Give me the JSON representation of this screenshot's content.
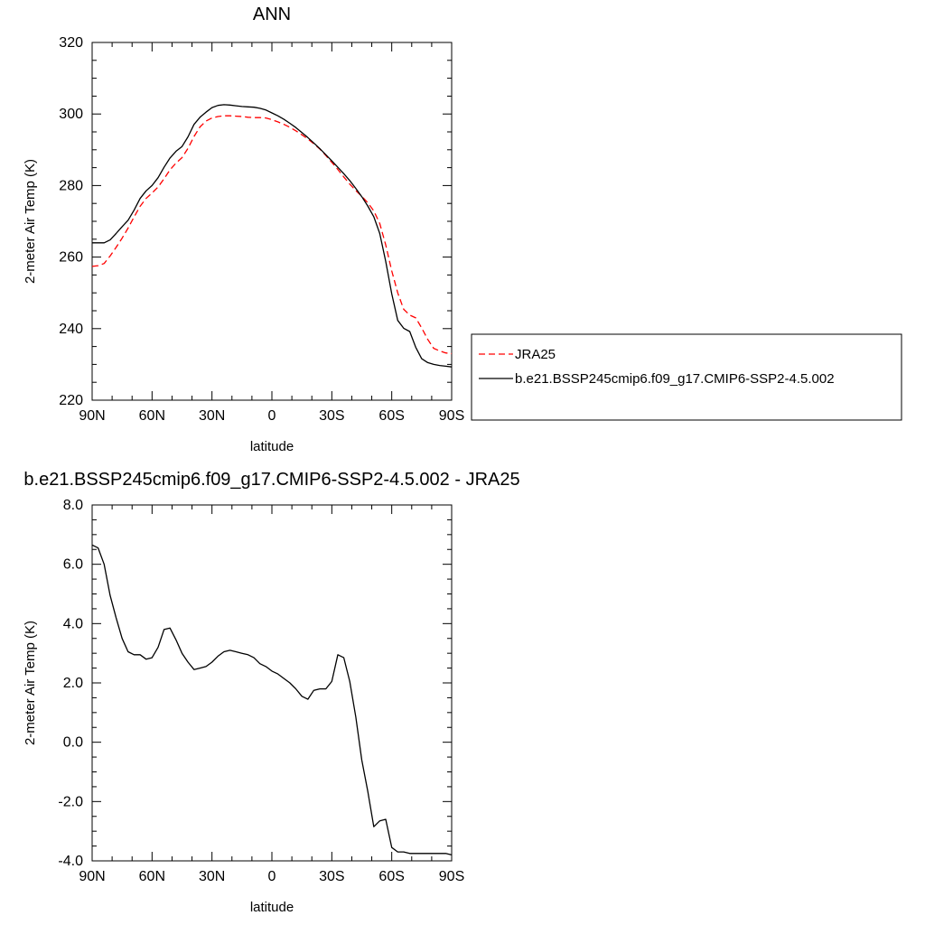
{
  "chart_data": [
    {
      "type": "line",
      "title": "ANN",
      "xlabel": "latitude",
      "ylabel": "2-meter Air Temp (K)",
      "xlim": [
        90,
        -90
      ],
      "ylim": [
        220,
        320
      ],
      "x_ticks": [
        {
          "value": 90,
          "label": "90N"
        },
        {
          "value": 60,
          "label": "60N"
        },
        {
          "value": 30,
          "label": "30N"
        },
        {
          "value": 0,
          "label": "0"
        },
        {
          "value": -30,
          "label": "30S"
        },
        {
          "value": -60,
          "label": "60S"
        },
        {
          "value": -90,
          "label": "90S"
        }
      ],
      "y_ticks": [
        {
          "value": 220,
          "label": "220"
        },
        {
          "value": 240,
          "label": "240"
        },
        {
          "value": 260,
          "label": "260"
        },
        {
          "value": 280,
          "label": "280"
        },
        {
          "value": 300,
          "label": "300"
        },
        {
          "value": 320,
          "label": "320"
        }
      ],
      "legend_position": "right",
      "series": [
        {
          "name": "JRA25",
          "color": "#ff0000",
          "dash": "dashed",
          "x": [
            90,
            87,
            84,
            81,
            78,
            75,
            72,
            69,
            66,
            63,
            60,
            57,
            54,
            51,
            48,
            45,
            42,
            39,
            36,
            33,
            30,
            27,
            24,
            21,
            18,
            15,
            12,
            9,
            6,
            3,
            0,
            -3,
            -6,
            -9,
            -12,
            -15,
            -18,
            -21,
            -24,
            -27,
            -30,
            -33,
            -36,
            -39,
            -42,
            -45,
            -48,
            -51,
            -54,
            -57,
            -60,
            -63,
            -66,
            -69,
            -72,
            -75,
            -78,
            -81,
            -84,
            -87,
            -90
          ],
          "y": [
            257.4,
            257.6,
            258.2,
            260.3,
            262.7,
            265.3,
            268.1,
            271.2,
            274.2,
            276.4,
            277.9,
            279.6,
            281.9,
            284.4,
            286.3,
            287.8,
            290.4,
            293.7,
            296.4,
            298.0,
            298.9,
            299.3,
            299.5,
            299.5,
            299.4,
            299.3,
            299.1,
            299.0,
            299.0,
            298.9,
            298.4,
            297.8,
            297.1,
            296.3,
            295.3,
            294.2,
            293.0,
            291.7,
            290.2,
            288.4,
            286.5,
            284.5,
            282.4,
            280.4,
            278.6,
            277.0,
            275.2,
            272.9,
            269.4,
            263.4,
            256.1,
            250.0,
            245.4,
            243.8,
            243.0,
            240.2,
            237.0,
            234.5,
            233.8,
            233.2,
            233.0
          ]
        },
        {
          "name": "b.e21.BSSP245cmip6.f09_g17.CMIP6-SSP2-4.5.002",
          "color": "#000000",
          "dash": "solid",
          "x": [
            90,
            87,
            84,
            81,
            78,
            75,
            72,
            69,
            66,
            63,
            60,
            57,
            54,
            51,
            48,
            45,
            42,
            39,
            36,
            33,
            30,
            27,
            24,
            21,
            18,
            15,
            12,
            9,
            6,
            3,
            0,
            -3,
            -6,
            -9,
            -12,
            -15,
            -18,
            -21,
            -24,
            -27,
            -30,
            -33,
            -36,
            -39,
            -42,
            -45,
            -48,
            -51,
            -54,
            -57,
            -60,
            -63,
            -66,
            -69,
            -72,
            -75,
            -78,
            -81,
            -84,
            -87,
            -90
          ],
          "y": [
            264.0,
            264.0,
            264.0,
            264.8,
            266.6,
            268.5,
            270.3,
            273.1,
            276.4,
            278.5,
            280.0,
            282.2,
            285.1,
            287.7,
            289.6,
            290.9,
            293.6,
            297.1,
            299.1,
            300.5,
            301.8,
            302.4,
            302.6,
            302.5,
            302.3,
            302.1,
            302.0,
            301.9,
            301.6,
            301.1,
            300.3,
            299.5,
            298.5,
            297.4,
            296.2,
            294.8,
            293.4,
            291.9,
            290.3,
            288.6,
            286.9,
            285.1,
            283.3,
            281.4,
            279.2,
            276.9,
            274.3,
            271.3,
            266.6,
            258.8,
            249.7,
            242.3,
            240.1,
            239.2,
            234.8,
            231.6,
            230.5,
            230.0,
            229.7,
            229.5,
            229.3
          ]
        }
      ]
    },
    {
      "type": "line",
      "title": "b.e21.BSSP245cmip6.f09_g17.CMIP6-SSP2-4.5.002 - JRA25",
      "xlabel": "latitude",
      "ylabel": "2-meter Air Temp (K)",
      "xlim": [
        90,
        -90
      ],
      "ylim": [
        -4.0,
        8.0
      ],
      "x_ticks": [
        {
          "value": 90,
          "label": "90N"
        },
        {
          "value": 60,
          "label": "60N"
        },
        {
          "value": 30,
          "label": "30N"
        },
        {
          "value": 0,
          "label": "0"
        },
        {
          "value": -30,
          "label": "30S"
        },
        {
          "value": -60,
          "label": "60S"
        },
        {
          "value": -90,
          "label": "90S"
        }
      ],
      "y_ticks": [
        {
          "value": -4.0,
          "label": "-4.0"
        },
        {
          "value": -2.0,
          "label": "-2.0"
        },
        {
          "value": 0.0,
          "label": "0.0"
        },
        {
          "value": 2.0,
          "label": "2.0"
        },
        {
          "value": 4.0,
          "label": "4.0"
        },
        {
          "value": 6.0,
          "label": "6.0"
        },
        {
          "value": 8.0,
          "label": "8.0"
        }
      ],
      "series": [
        {
          "color": "#000000",
          "dash": "solid",
          "x": [
            90,
            87,
            84,
            81,
            78,
            75,
            72,
            69,
            66,
            63,
            60,
            57,
            54,
            51,
            48,
            45,
            42,
            39,
            36,
            33,
            30,
            27,
            24,
            21,
            18,
            15,
            12,
            9,
            6,
            3,
            0,
            -3,
            -6,
            -9,
            -12,
            -15,
            -18,
            -21,
            -24,
            -27,
            -30,
            -33,
            -36,
            -39,
            -42,
            -45,
            -48,
            -51,
            -54,
            -57,
            -60,
            -63,
            -66,
            -69,
            -72,
            -75,
            -78,
            -81,
            -84,
            -87,
            -90
          ],
          "y": [
            6.65,
            6.55,
            6.0,
            4.95,
            4.2,
            3.5,
            3.05,
            2.95,
            2.95,
            2.8,
            2.85,
            3.2,
            3.8,
            3.85,
            3.45,
            3.0,
            2.7,
            2.45,
            2.5,
            2.55,
            2.7,
            2.9,
            3.05,
            3.1,
            3.05,
            3.0,
            2.95,
            2.85,
            2.65,
            2.55,
            2.4,
            2.3,
            2.15,
            2.0,
            1.8,
            1.55,
            1.45,
            1.75,
            1.8,
            1.8,
            2.05,
            2.95,
            2.85,
            2.05,
            0.85,
            -0.6,
            -1.65,
            -2.85,
            -2.65,
            -2.6,
            -3.55,
            -3.7,
            -3.7,
            -3.75,
            -3.75,
            -3.75,
            -3.75,
            -3.75,
            -3.75,
            -3.75,
            -3.8
          ]
        }
      ]
    }
  ]
}
